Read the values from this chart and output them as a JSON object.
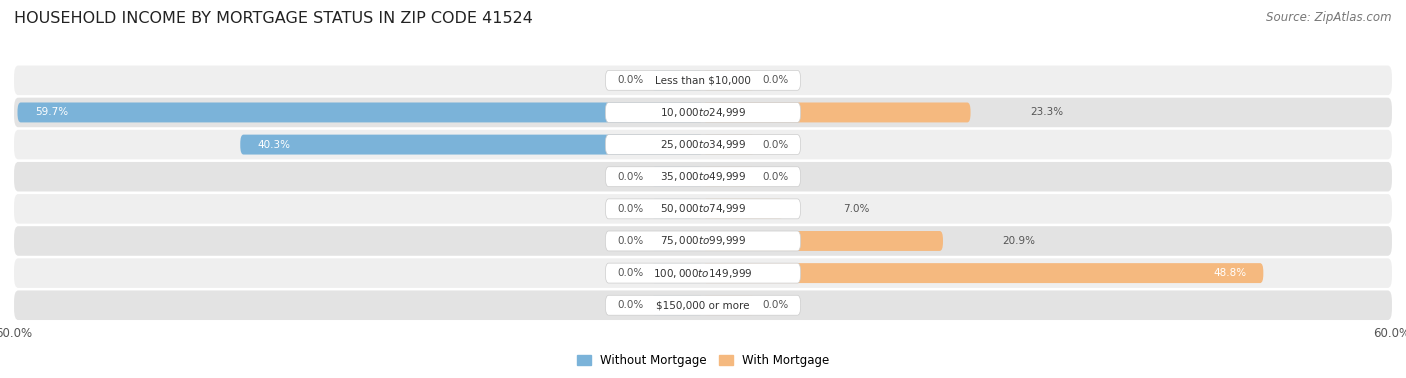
{
  "title": "HOUSEHOLD INCOME BY MORTGAGE STATUS IN ZIP CODE 41524",
  "source": "Source: ZipAtlas.com",
  "categories": [
    "Less than $10,000",
    "$10,000 to $24,999",
    "$25,000 to $34,999",
    "$35,000 to $49,999",
    "$50,000 to $74,999",
    "$75,000 to $99,999",
    "$100,000 to $149,999",
    "$150,000 or more"
  ],
  "without_mortgage": [
    0.0,
    59.7,
    40.3,
    0.0,
    0.0,
    0.0,
    0.0,
    0.0
  ],
  "with_mortgage": [
    0.0,
    23.3,
    0.0,
    0.0,
    7.0,
    20.9,
    48.8,
    0.0
  ],
  "max_val": 60.0,
  "color_without": "#7BB3D9",
  "color_with": "#F5B97F",
  "bg_row_light": "#EFEFEF",
  "bg_row_dark": "#E3E3E3",
  "title_fontsize": 11.5,
  "source_fontsize": 8.5,
  "label_fontsize": 7.5,
  "cat_fontsize": 7.5,
  "axis_label_fontsize": 8.5,
  "legend_fontsize": 8.5
}
